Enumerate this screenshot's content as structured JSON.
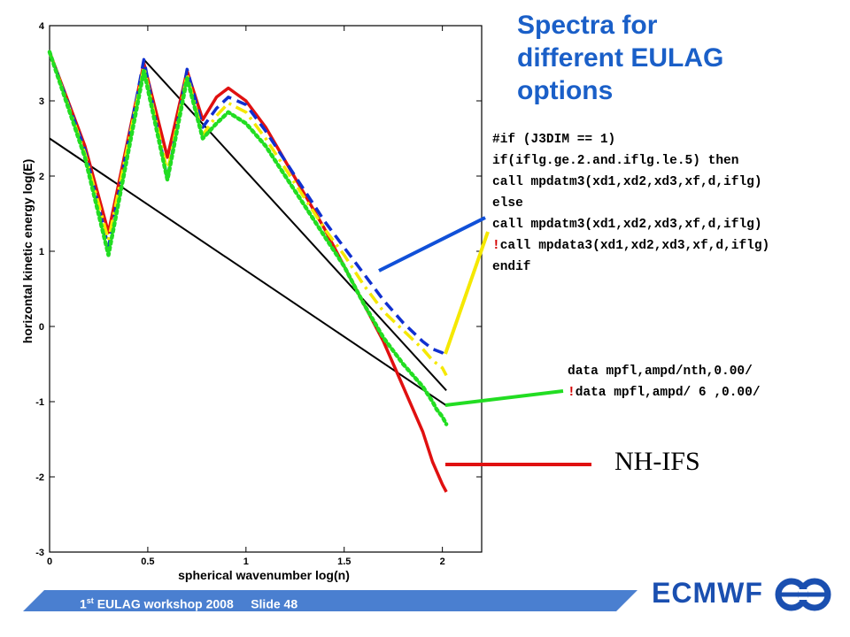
{
  "slide": {
    "title_lines": [
      "Spectra for",
      "different EULAG",
      "options"
    ],
    "code_block_1": [
      {
        "text": "#if (J3DIM == 1)",
        "bang": false
      },
      {
        "text": "if(iflg.ge.2.and.iflg.le.5) then",
        "bang": false
      },
      {
        "text": "call mpdatm3(xd1,xd2,xd3,xf,d,iflg)",
        "bang": false
      },
      {
        "text": "else",
        "bang": false
      },
      {
        "text": "call mpdatm3(xd1,xd2,xd3,xf,d,iflg)",
        "bang": false
      },
      {
        "text": "call mpdata3(xd1,xd2,xd3,xf,d,iflg)",
        "bang": true
      },
      {
        "text": "endif",
        "bang": false
      }
    ],
    "code_block_2": [
      {
        "text": "data mpfl,ampd/nth,0.00/",
        "bang": false
      },
      {
        "text": "data mpfl,ampd/ 6 ,0.00/",
        "bang": true
      }
    ],
    "nh_label": "NH-IFS",
    "footer": {
      "sup": "st",
      "number": "1",
      "workshop": " EULAG workshop 2008",
      "slide": "Slide 48"
    },
    "brand": "ECMWF",
    "colors": {
      "title": "#1a5fc8",
      "footer_bar": "#4a7fd0",
      "brand": "#1a4fb0",
      "bang": "#d40000"
    }
  },
  "chart_data": {
    "type": "line",
    "title": "",
    "xlabel": "spherical wavenumber log(n)",
    "ylabel": "horizontal kinetic energy log(E)",
    "xlim": [
      0,
      2.2
    ],
    "ylim": [
      -3,
      4
    ],
    "xticks": [
      0,
      0.5,
      1,
      1.5,
      2
    ],
    "xtick_labels": [
      "0",
      "0.5",
      "1",
      "1.5",
      "2"
    ],
    "yticks": [
      -3,
      -2,
      -1,
      0,
      1,
      2,
      3,
      4
    ],
    "ytick_labels": [
      "-3",
      "-2",
      "-1",
      "0",
      "1",
      "2",
      "3",
      "4"
    ],
    "grid": false,
    "series": [
      {
        "color": "#e01010",
        "style": "solid",
        "x": [
          0,
          0.18,
          0.3,
          0.48,
          0.6,
          0.7,
          0.78,
          0.85,
          0.91,
          1.0,
          1.1,
          1.2,
          1.3,
          1.4,
          1.5,
          1.6,
          1.7,
          1.8,
          1.9,
          1.95,
          2.0,
          2.02
        ],
        "y": [
          3.65,
          2.4,
          1.25,
          3.5,
          2.25,
          3.4,
          2.75,
          3.05,
          3.17,
          3.0,
          2.65,
          2.2,
          1.75,
          1.3,
          0.8,
          0.3,
          -0.2,
          -0.8,
          -1.4,
          -1.8,
          -2.1,
          -2.2
        ]
      },
      {
        "color": "#1030d0",
        "style": "dashed",
        "x": [
          0,
          0.18,
          0.3,
          0.48,
          0.6,
          0.7,
          0.78,
          0.85,
          0.91,
          1.0,
          1.1,
          1.2,
          1.3,
          1.4,
          1.5,
          1.6,
          1.7,
          1.8,
          1.9,
          1.95,
          2.0,
          2.02
        ],
        "y": [
          3.65,
          2.35,
          1.05,
          3.55,
          1.95,
          3.42,
          2.65,
          2.9,
          3.05,
          2.95,
          2.6,
          2.2,
          1.8,
          1.4,
          1.05,
          0.7,
          0.35,
          0.05,
          -0.2,
          -0.3,
          -0.35,
          -0.4
        ]
      },
      {
        "color": "#f5e800",
        "style": "dashdot",
        "x": [
          0,
          0.18,
          0.3,
          0.48,
          0.6,
          0.7,
          0.78,
          0.85,
          0.91,
          1.0,
          1.1,
          1.2,
          1.3,
          1.4,
          1.5,
          1.6,
          1.7,
          1.8,
          1.9,
          1.95,
          2.0,
          2.02
        ],
        "y": [
          3.65,
          2.3,
          1.15,
          3.45,
          2.05,
          3.35,
          2.55,
          2.8,
          2.97,
          2.85,
          2.5,
          2.1,
          1.7,
          1.3,
          0.95,
          0.55,
          0.2,
          -0.05,
          -0.3,
          -0.45,
          -0.55,
          -0.65
        ]
      },
      {
        "color": "#22dd22",
        "style": "dotted",
        "x": [
          0,
          0.18,
          0.3,
          0.48,
          0.6,
          0.7,
          0.78,
          0.85,
          0.91,
          1.0,
          1.1,
          1.2,
          1.3,
          1.4,
          1.5,
          1.6,
          1.7,
          1.8,
          1.9,
          1.95,
          1.97,
          2.0,
          2.02
        ],
        "y": [
          3.65,
          2.25,
          0.95,
          3.4,
          1.95,
          3.3,
          2.5,
          2.7,
          2.85,
          2.7,
          2.4,
          2.0,
          1.6,
          1.2,
          0.8,
          0.3,
          -0.15,
          -0.5,
          -0.8,
          -1.0,
          -1.1,
          -1.2,
          -1.3
        ]
      },
      {
        "color": "#000000",
        "style": "solid",
        "x": [
          0.48,
          2.02
        ],
        "y": [
          3.55,
          -0.85
        ]
      },
      {
        "color": "#000000",
        "style": "solid",
        "x": [
          0,
          2.02
        ],
        "y": [
          2.5,
          -1.05
        ]
      }
    ]
  }
}
